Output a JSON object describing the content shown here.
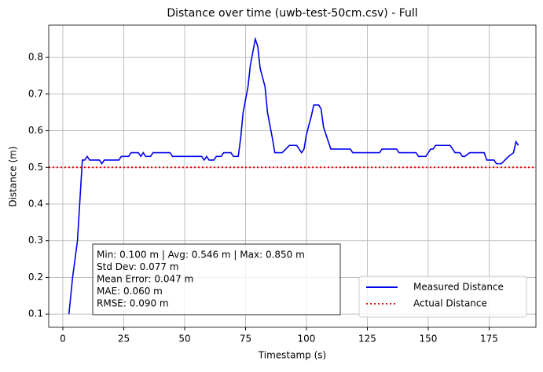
{
  "chart_data": {
    "type": "line",
    "title": "Distance over time (uwb-test-50cm.csv) - Full",
    "x_label": "Timestamp (s)",
    "y_label": "Distance (m)",
    "xlim": [
      -5.8,
      194.2
    ],
    "ylim": [
      0.064,
      0.888
    ],
    "xticks": [
      0,
      25,
      50,
      75,
      100,
      125,
      150,
      175
    ],
    "yticks": [
      0.1,
      0.2,
      0.3,
      0.4,
      0.5,
      0.6,
      0.7,
      0.8
    ],
    "grid": true,
    "legend": "lower right",
    "x": [
      2.5,
      4,
      6,
      7,
      8,
      9,
      10,
      11,
      13,
      15,
      16,
      17,
      20,
      23,
      24,
      27,
      28,
      31,
      32,
      33,
      34,
      36,
      37,
      42,
      44,
      45,
      50,
      55,
      57,
      58,
      59,
      60,
      62,
      63,
      65,
      66,
      69,
      70,
      72,
      73,
      74,
      76,
      77,
      79,
      80,
      81,
      83,
      84,
      86,
      87,
      90,
      93,
      95,
      96,
      98,
      99,
      100,
      102,
      103,
      105,
      106,
      107,
      110,
      115,
      118,
      119,
      125,
      130,
      131,
      137,
      138,
      145,
      146,
      149,
      150,
      151,
      152,
      153,
      159,
      160,
      161,
      163,
      164,
      165,
      167,
      173,
      174,
      177,
      178,
      180,
      183,
      185,
      186,
      187
    ],
    "series": [
      {
        "name": "Measured Distance",
        "color": "#0000ee",
        "values": [
          0.1,
          0.2,
          0.3,
          0.41,
          0.52,
          0.52,
          0.53,
          0.52,
          0.52,
          0.52,
          0.51,
          0.52,
          0.52,
          0.52,
          0.53,
          0.53,
          0.54,
          0.54,
          0.53,
          0.54,
          0.53,
          0.53,
          0.54,
          0.54,
          0.54,
          0.53,
          0.53,
          0.53,
          0.53,
          0.52,
          0.53,
          0.52,
          0.52,
          0.53,
          0.53,
          0.54,
          0.54,
          0.53,
          0.53,
          0.58,
          0.65,
          0.72,
          0.78,
          0.85,
          0.83,
          0.77,
          0.72,
          0.65,
          0.58,
          0.54,
          0.54,
          0.56,
          0.56,
          0.56,
          0.54,
          0.55,
          0.59,
          0.64,
          0.67,
          0.67,
          0.66,
          0.61,
          0.55,
          0.55,
          0.55,
          0.54,
          0.54,
          0.54,
          0.55,
          0.55,
          0.54,
          0.54,
          0.53,
          0.53,
          0.54,
          0.55,
          0.55,
          0.56,
          0.56,
          0.55,
          0.54,
          0.54,
          0.53,
          0.53,
          0.54,
          0.54,
          0.52,
          0.52,
          0.51,
          0.51,
          0.53,
          0.54,
          0.57,
          0.56
        ]
      }
    ],
    "reference_line": {
      "name": "Actual Distance",
      "value": 0.5,
      "color": "#ee0000"
    },
    "stats_text": [
      "Min: 0.100 m | Avg: 0.546 m | Max: 0.850 m",
      "Std Dev: 0.077 m",
      "Mean Error: 0.047 m",
      "MAE: 0.060 m",
      "RMSE: 0.090 m"
    ]
  }
}
